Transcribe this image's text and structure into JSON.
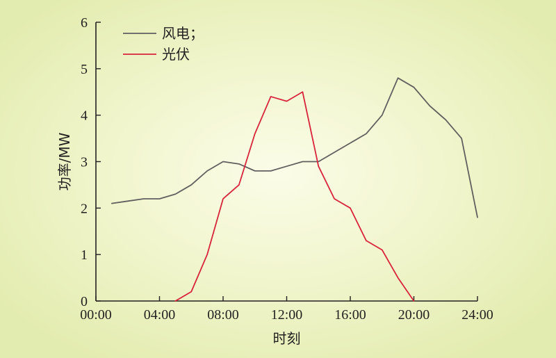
{
  "chart_data": {
    "type": "line",
    "x": [
      1,
      2,
      3,
      4,
      5,
      6,
      7,
      8,
      9,
      10,
      11,
      12,
      13,
      14,
      15,
      16,
      17,
      18,
      19,
      20,
      21,
      22,
      23,
      24
    ],
    "xticks": [
      0,
      4,
      8,
      12,
      16,
      20,
      24
    ],
    "xtick_labels": [
      "00:00",
      "04:00",
      "08:00",
      "12:00",
      "16:00",
      "20:00",
      "24:00"
    ],
    "xlim": [
      0,
      24
    ],
    "yticks": [
      0,
      1,
      2,
      3,
      4,
      5,
      6
    ],
    "ytick_labels": [
      "0",
      "1",
      "2",
      "3",
      "4",
      "5",
      "6"
    ],
    "ylim": [
      0,
      6
    ],
    "xlabel": "时刻",
    "ylabel": "功率/MW",
    "grid": false,
    "legend_position": "top-left",
    "series": [
      {
        "name": "风电；",
        "color": "#5f5f5f",
        "x": [
          1,
          2,
          3,
          4,
          5,
          6,
          7,
          8,
          9,
          10,
          11,
          12,
          13,
          14,
          15,
          16,
          17,
          18,
          19,
          20,
          21,
          22,
          23,
          24
        ],
        "values": [
          2.1,
          2.15,
          2.2,
          2.2,
          2.3,
          2.5,
          2.8,
          3.0,
          2.95,
          2.8,
          2.8,
          2.9,
          3.0,
          3.0,
          3.2,
          3.4,
          3.6,
          4.0,
          4.8,
          4.6,
          4.2,
          3.9,
          3.5,
          1.8
        ]
      },
      {
        "name": "光伏",
        "color": "#d8233a",
        "x": [
          5,
          6,
          7,
          8,
          9,
          10,
          11,
          12,
          13,
          14,
          15,
          16,
          17,
          18,
          19,
          20
        ],
        "values": [
          0,
          0.2,
          1.0,
          2.2,
          2.5,
          3.6,
          4.4,
          4.3,
          4.5,
          2.9,
          2.2,
          2.0,
          1.3,
          1.1,
          0.5,
          0
        ]
      }
    ]
  }
}
